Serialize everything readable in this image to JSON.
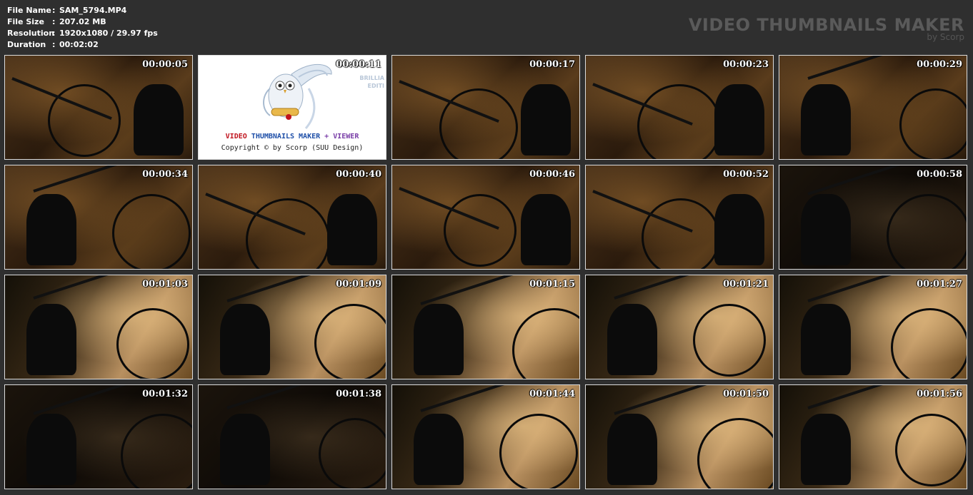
{
  "info": [
    {
      "label": "File Name",
      "sep": ":",
      "value": "SAM_5794.MP4"
    },
    {
      "label": "File Size",
      "sep": ":",
      "value": "207.02 MB"
    },
    {
      "label": "Resolution",
      "sep": ":",
      "value": "1920x1080 / 29.97 fps"
    },
    {
      "label": "Duration",
      "sep": ":",
      "value": "00:02:02"
    }
  ],
  "brand": {
    "title": "VIDEO THUMBNAILS MAKER",
    "subtitle": "by Scorp"
  },
  "logo": {
    "title_red": "VIDEO",
    "title_blue": "THUMBNAILS MAKER",
    "title_plus": "+",
    "title_purple": "VIEWER",
    "copyright": "Copyright © by Scorp (SUU Design)",
    "side_line1": "BRILLIA",
    "side_line2": "EDITI"
  },
  "thumbnails": [
    {
      "time": "00:00:05",
      "icon": "bike-frame-icon"
    },
    {
      "time": "00:00:11",
      "icon": "owl-logo-icon"
    },
    {
      "time": "00:00:17",
      "icon": "bike-frame-icon"
    },
    {
      "time": "00:00:23",
      "icon": "bike-frame-icon"
    },
    {
      "time": "00:00:29",
      "icon": "bike-frame-icon"
    },
    {
      "time": "00:00:34",
      "icon": "bike-frame-icon"
    },
    {
      "time": "00:00:40",
      "icon": "bike-frame-icon"
    },
    {
      "time": "00:00:46",
      "icon": "bike-frame-icon"
    },
    {
      "time": "00:00:52",
      "icon": "bike-frame-icon"
    },
    {
      "time": "00:00:58",
      "icon": "bike-frame-icon"
    },
    {
      "time": "00:01:03",
      "icon": "bike-frame-icon"
    },
    {
      "time": "00:01:09",
      "icon": "bike-frame-icon"
    },
    {
      "time": "00:01:15",
      "icon": "bike-frame-icon"
    },
    {
      "time": "00:01:21",
      "icon": "bike-frame-icon"
    },
    {
      "time": "00:01:27",
      "icon": "bike-frame-icon"
    },
    {
      "time": "00:01:32",
      "icon": "bike-frame-icon"
    },
    {
      "time": "00:01:38",
      "icon": "bike-frame-icon"
    },
    {
      "time": "00:01:44",
      "icon": "bike-frame-icon"
    },
    {
      "time": "00:01:50",
      "icon": "bike-frame-icon"
    },
    {
      "time": "00:01:56",
      "icon": "bike-frame-icon"
    }
  ],
  "colors": {
    "background": "#2f2f2f",
    "text": "#ffffff",
    "brand": "#5a5a5a",
    "thumb_border": "#dcdcdc"
  }
}
